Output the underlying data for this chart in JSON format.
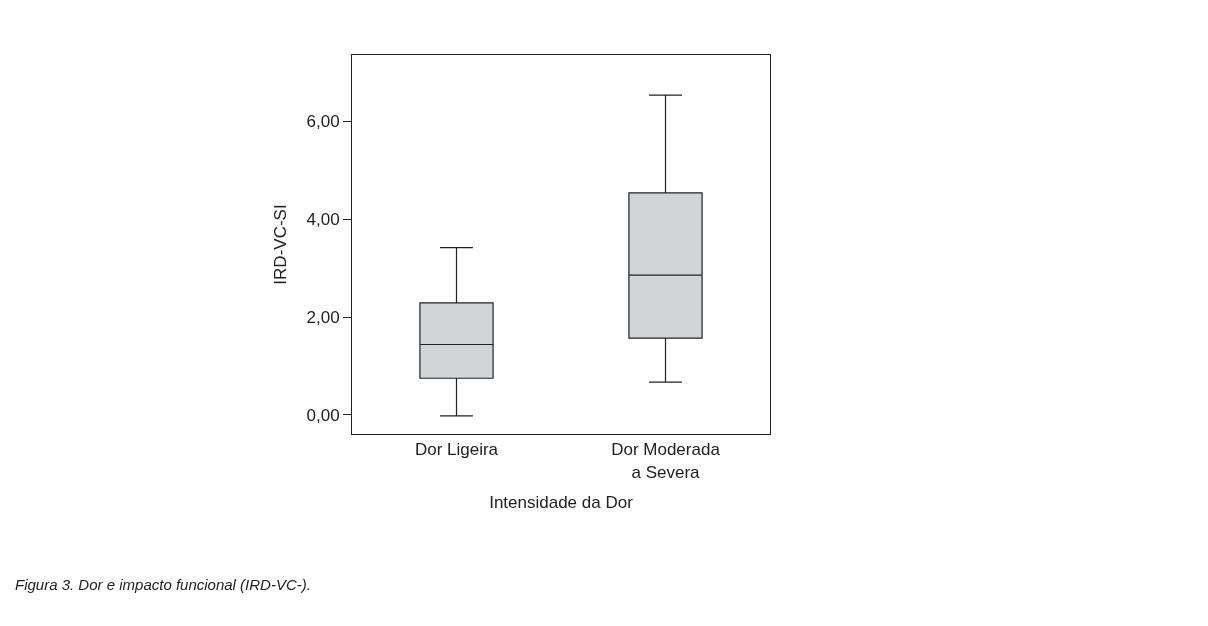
{
  "chart_data": {
    "type": "box",
    "xlabel": "Intensidade da Dor",
    "ylabel": "IRD-VC-SI",
    "categories": [
      "Dor Ligeira",
      "Dor Moderada\na Severa"
    ],
    "boxes": [
      {
        "low": -0.02,
        "q1": 0.75,
        "median": 1.44,
        "q3": 2.29,
        "high": 3.42
      },
      {
        "low": 0.67,
        "q1": 1.57,
        "median": 2.86,
        "q3": 4.54,
        "high": 6.54
      }
    ],
    "color": "#d3d4d6",
    "ylim": [
      -0.39,
      7.36
    ],
    "yticks": [
      {
        "value": 0,
        "label": "0,00"
      },
      {
        "value": 2,
        "label": "2,00"
      },
      {
        "value": 4,
        "label": "4,00"
      },
      {
        "value": 6,
        "label": "6,00"
      }
    ],
    "annotations": [
      "Figura 3. Dor e impacto funcional (IRD-VC-)."
    ]
  }
}
